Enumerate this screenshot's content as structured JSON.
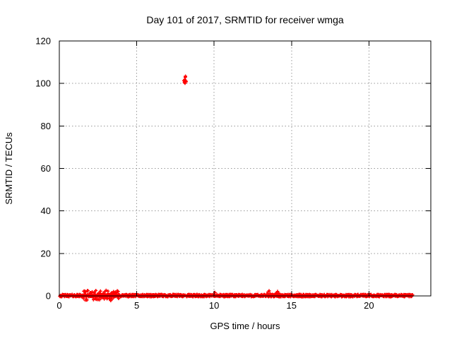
{
  "chart_data": {
    "type": "scatter",
    "title": "Day 101 of 2017, SRMTID for receiver wmga",
    "xlabel": "GPS time / hours",
    "ylabel": "SRMTID / TECUs",
    "xlim": [
      0,
      24
    ],
    "ylim": [
      0,
      120
    ],
    "xticks": [
      0,
      5,
      10,
      15,
      20
    ],
    "yticks": [
      0,
      20,
      40,
      60,
      80,
      100,
      120
    ],
    "grid": true,
    "legend": "none",
    "marker": "plus",
    "marker_color": "#ff0000",
    "grid_color": "#9a9a9a",
    "border_color": "#000000",
    "text_color": "#000000",
    "background_color": "#ffffff",
    "series": [
      {
        "name": "SRMTID",
        "band_segments": [
          {
            "x0": 0.03,
            "x1": 8.04,
            "step": 0.02,
            "y": 0.15,
            "jitter": 0.55
          },
          {
            "x0": 8.09,
            "x1": 8.13,
            "step": 0.02,
            "y": 0.15,
            "jitter": 0.4
          },
          {
            "x0": 8.22,
            "x1": 22.82,
            "step": 0.02,
            "y": 0.15,
            "jitter": 0.55
          }
        ],
        "noise_segments": [
          {
            "x0": 1.55,
            "x1": 3.85,
            "step": 0.03,
            "y": 0.2,
            "jitter": 2.4
          }
        ],
        "outlier_cluster": [
          [
            8.05,
            101.3
          ],
          [
            8.08,
            100.5
          ],
          [
            8.1,
            101.0
          ],
          [
            8.1,
            101.9
          ],
          [
            8.12,
            100.1
          ],
          [
            8.13,
            101.4
          ],
          [
            8.14,
            102.9
          ],
          [
            8.15,
            103.4
          ],
          [
            8.17,
            101.2
          ],
          [
            8.19,
            100.8
          ]
        ],
        "small_bumps": [
          [
            10.05,
            1.6
          ],
          [
            13.48,
            1.8
          ],
          [
            13.55,
            2.4
          ],
          [
            13.62,
            1.1
          ],
          [
            14.02,
            1.5
          ],
          [
            14.1,
            2.1
          ],
          [
            14.18,
            1.3
          ]
        ]
      }
    ]
  }
}
